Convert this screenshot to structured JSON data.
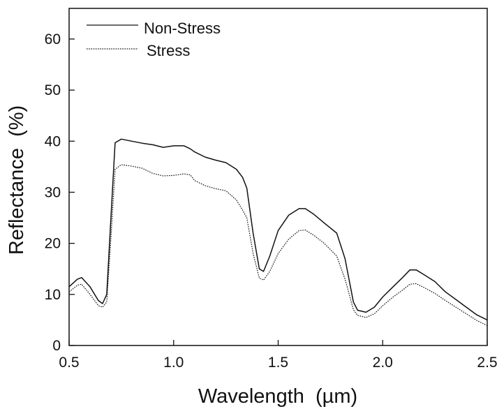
{
  "chart_data": {
    "type": "line",
    "title": "",
    "xlabel": "Wavelength  (µm)",
    "ylabel": "Reflectance  (%)",
    "xlim": [
      0.5,
      2.5
    ],
    "ylim": [
      0,
      66
    ],
    "xticks": [
      "0.5",
      "1.0",
      "1.5",
      "2.0",
      "2.5"
    ],
    "xtick_values": [
      0.5,
      1.0,
      1.5,
      2.0,
      2.5
    ],
    "yticks": [
      "0",
      "10",
      "20",
      "30",
      "40",
      "50",
      "60"
    ],
    "ytick_values": [
      0,
      10,
      20,
      30,
      40,
      50,
      60
    ],
    "grid": false,
    "legend_position": "top-left",
    "series": [
      {
        "name": "Non-Stress",
        "line_style": "solid",
        "color": "#111111",
        "x": [
          0.5,
          0.54,
          0.56,
          0.6,
          0.64,
          0.66,
          0.68,
          0.7,
          0.72,
          0.75,
          0.8,
          0.85,
          0.9,
          0.95,
          1.0,
          1.05,
          1.08,
          1.1,
          1.15,
          1.2,
          1.25,
          1.3,
          1.33,
          1.35,
          1.38,
          1.41,
          1.43,
          1.46,
          1.5,
          1.55,
          1.6,
          1.63,
          1.67,
          1.72,
          1.78,
          1.82,
          1.86,
          1.88,
          1.92,
          1.96,
          2.0,
          2.05,
          2.1,
          2.13,
          2.16,
          2.2,
          2.25,
          2.3,
          2.35,
          2.4,
          2.45,
          2.5
        ],
        "y": [
          11.5,
          13.0,
          13.3,
          11.5,
          8.8,
          8.2,
          10.0,
          25.0,
          39.7,
          40.4,
          40.0,
          39.6,
          39.3,
          38.8,
          39.1,
          39.1,
          38.5,
          37.9,
          36.9,
          36.3,
          35.8,
          34.5,
          32.9,
          30.8,
          22.0,
          15.0,
          14.5,
          17.5,
          22.5,
          25.5,
          26.8,
          26.8,
          25.7,
          24.0,
          22.0,
          17.0,
          8.5,
          6.9,
          6.5,
          7.5,
          9.5,
          11.5,
          13.5,
          14.8,
          14.8,
          13.8,
          12.5,
          10.5,
          9.0,
          7.5,
          6.0,
          5.0
        ]
      },
      {
        "name": "Stress",
        "line_style": "dotted",
        "color": "#111111",
        "x": [
          0.5,
          0.54,
          0.56,
          0.6,
          0.64,
          0.66,
          0.68,
          0.7,
          0.72,
          0.75,
          0.8,
          0.85,
          0.9,
          0.95,
          1.0,
          1.05,
          1.08,
          1.1,
          1.15,
          1.2,
          1.25,
          1.3,
          1.33,
          1.35,
          1.38,
          1.41,
          1.43,
          1.46,
          1.5,
          1.55,
          1.6,
          1.63,
          1.67,
          1.72,
          1.78,
          1.82,
          1.86,
          1.88,
          1.92,
          1.96,
          2.0,
          2.05,
          2.1,
          2.13,
          2.16,
          2.2,
          2.25,
          2.3,
          2.35,
          2.4,
          2.45,
          2.5
        ],
        "y": [
          10.5,
          11.8,
          12.0,
          10.0,
          7.8,
          7.5,
          8.5,
          21.0,
          34.5,
          35.4,
          35.1,
          34.7,
          33.7,
          33.2,
          33.3,
          33.6,
          33.4,
          32.3,
          31.3,
          30.7,
          30.3,
          28.5,
          26.5,
          25.0,
          18.0,
          13.2,
          12.8,
          14.5,
          18.0,
          20.8,
          22.5,
          22.6,
          21.6,
          20.0,
          17.5,
          13.0,
          7.0,
          5.9,
          5.5,
          6.2,
          7.8,
          9.5,
          11.0,
          12.0,
          12.1,
          11.3,
          10.2,
          8.8,
          7.5,
          6.2,
          4.9,
          3.9
        ]
      }
    ]
  }
}
